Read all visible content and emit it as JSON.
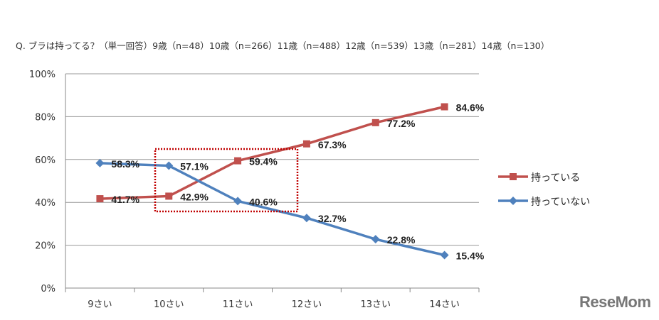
{
  "chart_data": {
    "type": "line",
    "title": "Q. ブラは持ってる？（単一回答）9歳（n=48）10歳（n=266）11歳（n=488）12歳（n=539）13歳（n=281）14歳（n=130）",
    "categories": [
      "9さい",
      "10さい",
      "11さい",
      "12さい",
      "13さい",
      "14さい"
    ],
    "ylim": [
      0,
      100
    ],
    "yticks": [
      "0%",
      "20%",
      "40%",
      "60%",
      "80%",
      "100%"
    ],
    "ytick_values": [
      0,
      20,
      40,
      60,
      80,
      100
    ],
    "grid": true,
    "legend_position": "right",
    "series": [
      {
        "name": "持っている",
        "color": "#c0504d",
        "marker": "square",
        "values": [
          41.7,
          42.9,
          59.4,
          67.3,
          77.2,
          84.6
        ],
        "labels": [
          "41.7%",
          "42.9%",
          "59.4%",
          "67.3%",
          "77.2%",
          "84.6%"
        ]
      },
      {
        "name": "持っていない",
        "color": "#4f81bd",
        "marker": "diamond",
        "values": [
          58.3,
          57.1,
          40.6,
          32.7,
          22.8,
          15.4
        ],
        "labels": [
          "58.3%",
          "57.1%",
          "40.6%",
          "32.7%",
          "22.8%",
          "15.4%"
        ]
      }
    ],
    "highlight_color": "#c00000"
  },
  "logo": "ReseMom"
}
